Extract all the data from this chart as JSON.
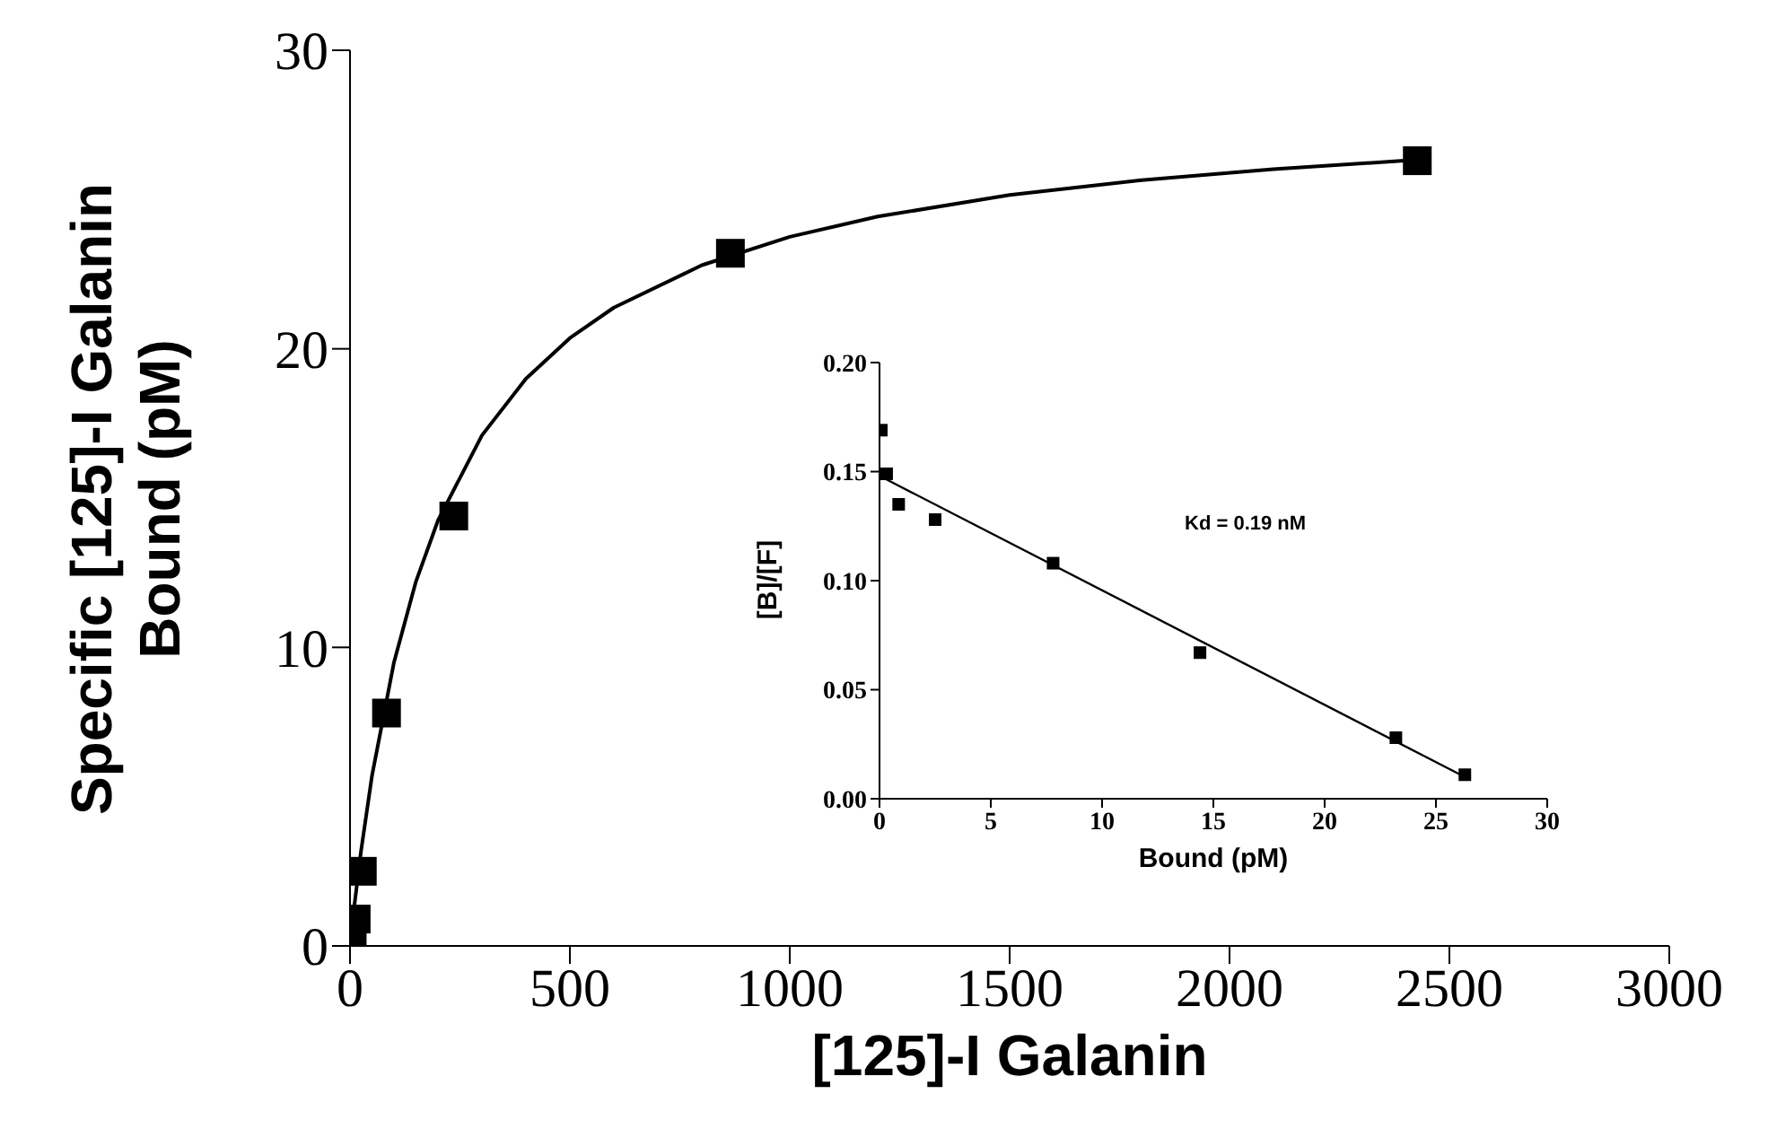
{
  "chart_data": [
    {
      "type": "scatter",
      "xlabel": "[125]-I Galanin",
      "ylabel": "Specific [125]-I Galanin Bound (pM)",
      "xlim": [
        0,
        3000
      ],
      "xticks": [
        0,
        500,
        1000,
        1500,
        2000,
        2500,
        3000
      ],
      "ylim": [
        0,
        30
      ],
      "yticks": [
        0,
        10,
        20,
        30
      ],
      "grid": false,
      "series": [
        {
          "marker": "square",
          "color": "#000000",
          "x": [
            5,
            14,
            28,
            83,
            236,
            865,
            2427
          ],
          "values": [
            0.3,
            0.9,
            2.5,
            7.8,
            14.4,
            23.2,
            26.3
          ]
        },
        {
          "type": "line",
          "marker": "none",
          "color": "#000000",
          "line_style": "solid",
          "x": [
            0,
            10,
            25,
            50,
            100,
            150,
            200,
            300,
            400,
            500,
            600,
            800,
            1000,
            1200,
            1500,
            1800,
            2100,
            2427
          ],
          "values": [
            0,
            1.36,
            3.17,
            5.7,
            9.5,
            12.21,
            14.25,
            17.1,
            19.0,
            20.36,
            21.38,
            22.8,
            23.75,
            24.43,
            25.15,
            25.65,
            26.02,
            26.33
          ]
        }
      ]
    },
    {
      "type": "scatter",
      "xlabel": "Bound (pM)",
      "ylabel": "[B]/[F]",
      "xlim": [
        0,
        30
      ],
      "xticks": [
        0,
        5,
        10,
        15,
        20,
        25,
        30
      ],
      "ylim": [
        0,
        0.2
      ],
      "yticks": [
        {
          "value": 0,
          "label": "0.00"
        },
        {
          "value": 0.05,
          "label": "0.05"
        },
        {
          "value": 0.1,
          "label": "0.10"
        },
        {
          "value": 0.15,
          "label": "0.15"
        },
        {
          "value": 0.2,
          "label": "0.20"
        }
      ],
      "grid": false,
      "annotations": [
        "Kd = 0.19 nM"
      ],
      "series": [
        {
          "marker": "square",
          "color": "#000000",
          "x": [
            0.08,
            0.32,
            0.86,
            2.5,
            7.8,
            14.4,
            23.2,
            26.3
          ],
          "values": [
            0.169,
            0.149,
            0.135,
            0.128,
            0.108,
            0.067,
            0.028,
            0.011
          ]
        },
        {
          "type": "line",
          "marker": "none",
          "color": "#000000",
          "line_style": "solid",
          "x": [
            0.2,
            26.3
          ],
          "values": [
            0.147,
            0.01
          ]
        }
      ]
    }
  ]
}
